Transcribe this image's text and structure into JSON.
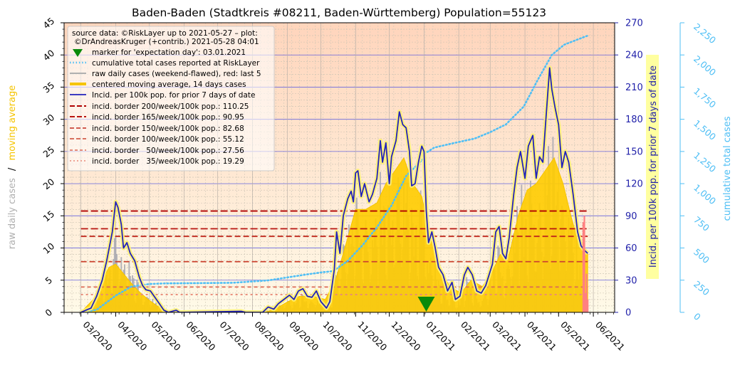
{
  "chart_data": {
    "type": "line",
    "title": "Baden-Baden (Stadtkreis #08211, Baden-Württemberg) Population=55123",
    "y_left_label_parts": [
      "raw daily cases",
      "/",
      "moving average"
    ],
    "y_right1_label": "Incid. per 100k pop. for prior 7 days of date",
    "y_right2_label": "cumulative total cases",
    "y_left_range": [
      0,
      45
    ],
    "y_right1_range": [
      0,
      270
    ],
    "y_right2_range": [
      0,
      2250
    ],
    "y_left_ticks": [
      0,
      5,
      10,
      15,
      20,
      25,
      30,
      35,
      40,
      45
    ],
    "y_right1_ticks": [
      0,
      30,
      60,
      90,
      120,
      150,
      180,
      210,
      240,
      270
    ],
    "y_right2_ticks": [
      0,
      250,
      500,
      750,
      "1,000",
      "1,250",
      "1,500",
      "1,750",
      "2,000",
      "2,250"
    ],
    "x_tick_labels": [
      "03/2020",
      "04/2020",
      "05/2020",
      "06/2020",
      "07/2020",
      "08/2020",
      "09/2020",
      "10/2020",
      "11/2020",
      "12/2020",
      "01/2021",
      "02/2021",
      "03/2021",
      "04/2021",
      "05/2021",
      "06/2021"
    ],
    "x_range": [
      "2020-02-15",
      "2021-06-20"
    ],
    "grid": true,
    "legend_position": "top-left",
    "legend": [
      "source data: ©RiskLayer up to 2021-05-27 – plot:",
      "©DrAndreasKruger (+contrib.) 2021-05-28 04:01",
      "marker for 'expectation day': 03.01.2021",
      "cumulative total cases reported at RiskLayer",
      "raw daily cases (weekend-flawed), red: last 5",
      "centered moving average, 14 days cases",
      "Incid. per 100k pop. for prior 7 days of date",
      "incid. border 200/week/100k pop.: 110.25",
      "incid. border 165/week/100k pop.: 90.95",
      "incid. border 150/week/100k pop.: 82.68",
      "incid. border 100/week/100k pop.: 55.12",
      "incid. border   50/week/100k pop.: 27.56",
      "incid. border   35/week/100k pop.: 19.29"
    ],
    "expectation_day": "2021-01-03",
    "incidence_borders": [
      {
        "per_week_100k": 200,
        "daily_cases": 110.25,
        "color": "#b00000",
        "dash": "10,4"
      },
      {
        "per_week_100k": 165,
        "daily_cases": 90.95,
        "color": "#b81410",
        "dash": "10,4"
      },
      {
        "per_week_100k": 150,
        "daily_cases": 82.68,
        "color": "#c0281c",
        "dash": "8,4"
      },
      {
        "per_week_100k": 100,
        "daily_cases": 55.12,
        "color": "#cc4430",
        "dash": "8,4"
      },
      {
        "per_week_100k": 50,
        "daily_cases": 27.56,
        "color": "#dd6a55",
        "dash": "5,4"
      },
      {
        "per_week_100k": 35,
        "daily_cases": 19.29,
        "color": "#e88a78",
        "dash": "3,4"
      }
    ],
    "incidence_7day": [
      [
        "2020-03-01",
        0
      ],
      [
        "2020-03-10",
        4
      ],
      [
        "2020-03-15",
        15
      ],
      [
        "2020-03-20",
        30
      ],
      [
        "2020-03-24",
        48
      ],
      [
        "2020-03-29",
        75
      ],
      [
        "2020-04-01",
        103
      ],
      [
        "2020-04-03",
        98
      ],
      [
        "2020-04-06",
        82
      ],
      [
        "2020-04-08",
        60
      ],
      [
        "2020-04-11",
        65
      ],
      [
        "2020-04-14",
        55
      ],
      [
        "2020-04-18",
        48
      ],
      [
        "2020-04-22",
        33
      ],
      [
        "2020-04-25",
        25
      ],
      [
        "2020-04-28",
        21
      ],
      [
        "2020-05-02",
        20
      ],
      [
        "2020-05-06",
        14
      ],
      [
        "2020-05-10",
        8
      ],
      [
        "2020-05-14",
        2
      ],
      [
        "2020-05-18",
        0
      ],
      [
        "2020-05-25",
        2
      ],
      [
        "2020-05-28",
        0
      ],
      [
        "2020-07-22",
        1
      ],
      [
        "2020-07-26",
        0
      ],
      [
        "2020-08-10",
        0
      ],
      [
        "2020-08-15",
        5
      ],
      [
        "2020-08-20",
        3
      ],
      [
        "2020-08-24",
        8
      ],
      [
        "2020-08-29",
        12
      ],
      [
        "2020-09-03",
        16
      ],
      [
        "2020-09-07",
        12
      ],
      [
        "2020-09-11",
        20
      ],
      [
        "2020-09-15",
        22
      ],
      [
        "2020-09-19",
        15
      ],
      [
        "2020-09-23",
        14
      ],
      [
        "2020-09-27",
        20
      ],
      [
        "2020-10-01",
        10
      ],
      [
        "2020-10-06",
        4
      ],
      [
        "2020-10-09",
        10
      ],
      [
        "2020-10-13",
        40
      ],
      [
        "2020-10-15",
        75
      ],
      [
        "2020-10-18",
        55
      ],
      [
        "2020-10-21",
        90
      ],
      [
        "2020-10-25",
        106
      ],
      [
        "2020-10-28",
        113
      ],
      [
        "2020-10-30",
        103
      ],
      [
        "2020-11-01",
        130
      ],
      [
        "2020-11-03",
        132
      ],
      [
        "2020-11-06",
        108
      ],
      [
        "2020-11-09",
        120
      ],
      [
        "2020-11-13",
        103
      ],
      [
        "2020-11-16",
        110
      ],
      [
        "2020-11-20",
        125
      ],
      [
        "2020-11-23",
        160
      ],
      [
        "2020-11-25",
        140
      ],
      [
        "2020-11-28",
        158
      ],
      [
        "2020-12-01",
        120
      ],
      [
        "2020-12-03",
        145
      ],
      [
        "2020-12-07",
        160
      ],
      [
        "2020-12-10",
        187
      ],
      [
        "2020-12-13",
        175
      ],
      [
        "2020-12-16",
        172
      ],
      [
        "2020-12-19",
        150
      ],
      [
        "2020-12-21",
        118
      ],
      [
        "2020-12-24",
        120
      ],
      [
        "2020-12-27",
        140
      ],
      [
        "2020-12-30",
        155
      ],
      [
        "2021-01-01",
        150
      ],
      [
        "2021-01-03",
        95
      ],
      [
        "2021-01-05",
        65
      ],
      [
        "2021-01-08",
        75
      ],
      [
        "2021-01-11",
        60
      ],
      [
        "2021-01-14",
        42
      ],
      [
        "2021-01-18",
        35
      ],
      [
        "2021-01-22",
        20
      ],
      [
        "2021-01-26",
        28
      ],
      [
        "2021-01-29",
        12
      ],
      [
        "2021-02-02",
        15
      ],
      [
        "2021-02-06",
        35
      ],
      [
        "2021-02-09",
        42
      ],
      [
        "2021-02-13",
        35
      ],
      [
        "2021-02-17",
        20
      ],
      [
        "2021-02-21",
        18
      ],
      [
        "2021-02-25",
        25
      ],
      [
        "2021-02-28",
        35
      ],
      [
        "2021-03-03",
        45
      ],
      [
        "2021-03-06",
        75
      ],
      [
        "2021-03-09",
        80
      ],
      [
        "2021-03-12",
        55
      ],
      [
        "2021-03-15",
        50
      ],
      [
        "2021-03-18",
        70
      ],
      [
        "2021-03-22",
        110
      ],
      [
        "2021-03-25",
        135
      ],
      [
        "2021-03-28",
        150
      ],
      [
        "2021-04-01",
        125
      ],
      [
        "2021-04-04",
        155
      ],
      [
        "2021-04-08",
        165
      ],
      [
        "2021-04-11",
        125
      ],
      [
        "2021-04-14",
        145
      ],
      [
        "2021-04-17",
        140
      ],
      [
        "2021-04-20",
        185
      ],
      [
        "2021-04-23",
        228
      ],
      [
        "2021-04-25",
        208
      ],
      [
        "2021-04-28",
        190
      ],
      [
        "2021-05-01",
        175
      ],
      [
        "2021-05-04",
        135
      ],
      [
        "2021-05-07",
        150
      ],
      [
        "2021-05-10",
        140
      ],
      [
        "2021-05-14",
        110
      ],
      [
        "2021-05-18",
        75
      ],
      [
        "2021-05-21",
        62
      ],
      [
        "2021-05-24",
        58
      ],
      [
        "2021-05-27",
        55
      ]
    ],
    "moving_average_14d": [
      [
        "2020-03-01",
        0
      ],
      [
        "2020-03-12",
        2
      ],
      [
        "2020-03-20",
        5
      ],
      [
        "2020-03-26",
        7
      ],
      [
        "2020-04-01",
        7.5
      ],
      [
        "2020-04-08",
        6
      ],
      [
        "2020-04-15",
        4.5
      ],
      [
        "2020-04-22",
        3.2
      ],
      [
        "2020-04-30",
        2
      ],
      [
        "2020-05-08",
        1
      ],
      [
        "2020-05-16",
        0.3
      ],
      [
        "2020-05-24",
        0
      ],
      [
        "2020-08-12",
        0
      ],
      [
        "2020-08-22",
        0.6
      ],
      [
        "2020-09-01",
        1.6
      ],
      [
        "2020-09-12",
        2.5
      ],
      [
        "2020-09-24",
        2.5
      ],
      [
        "2020-10-05",
        2
      ],
      [
        "2020-10-14",
        5
      ],
      [
        "2020-10-24",
        11
      ],
      [
        "2020-11-01",
        16
      ],
      [
        "2020-11-10",
        16
      ],
      [
        "2020-11-20",
        17
      ],
      [
        "2020-11-28",
        20
      ],
      [
        "2020-12-06",
        22
      ],
      [
        "2020-12-14",
        24
      ],
      [
        "2020-12-22",
        20
      ],
      [
        "2020-12-30",
        18
      ],
      [
        "2021-01-06",
        12
      ],
      [
        "2021-01-14",
        7
      ],
      [
        "2021-01-24",
        4
      ],
      [
        "2021-02-03",
        3
      ],
      [
        "2021-02-12",
        5
      ],
      [
        "2021-02-22",
        4
      ],
      [
        "2021-03-02",
        6
      ],
      [
        "2021-03-10",
        9
      ],
      [
        "2021-03-18",
        9
      ],
      [
        "2021-03-26",
        15
      ],
      [
        "2021-04-03",
        19
      ],
      [
        "2021-04-11",
        20
      ],
      [
        "2021-04-19",
        22
      ],
      [
        "2021-04-27",
        24
      ],
      [
        "2021-05-05",
        20
      ],
      [
        "2021-05-12",
        15
      ],
      [
        "2021-05-20",
        10
      ],
      [
        "2021-05-27",
        9
      ]
    ],
    "cumulative_cases": [
      [
        "2020-03-01",
        0
      ],
      [
        "2020-03-15",
        20
      ],
      [
        "2020-04-01",
        130
      ],
      [
        "2020-04-15",
        200
      ],
      [
        "2020-05-01",
        220
      ],
      [
        "2020-05-15",
        225
      ],
      [
        "2020-06-15",
        227
      ],
      [
        "2020-07-15",
        230
      ],
      [
        "2020-08-15",
        248
      ],
      [
        "2020-09-15",
        290
      ],
      [
        "2020-10-01",
        310
      ],
      [
        "2020-10-12",
        320
      ],
      [
        "2020-10-25",
        400
      ],
      [
        "2020-11-07",
        520
      ],
      [
        "2020-11-20",
        660
      ],
      [
        "2020-12-03",
        830
      ],
      [
        "2020-12-16",
        1060
      ],
      [
        "2020-12-31",
        1190
      ],
      [
        "2021-01-01",
        1230
      ],
      [
        "2021-01-10",
        1280
      ],
      [
        "2021-01-25",
        1310
      ],
      [
        "2021-02-15",
        1350
      ],
      [
        "2021-03-01",
        1400
      ],
      [
        "2021-03-15",
        1460
      ],
      [
        "2021-03-31",
        1600
      ],
      [
        "2021-04-12",
        1800
      ],
      [
        "2021-04-25",
        2000
      ],
      [
        "2021-05-06",
        2080
      ],
      [
        "2021-05-18",
        2120
      ],
      [
        "2021-05-27",
        2150
      ]
    ],
    "last_days_red": [
      [
        "2021-05-23",
        14
      ],
      [
        "2021-05-24",
        15
      ],
      [
        "2021-05-25",
        3
      ],
      [
        "2021-05-26",
        6
      ],
      [
        "2021-05-27",
        2
      ]
    ]
  }
}
